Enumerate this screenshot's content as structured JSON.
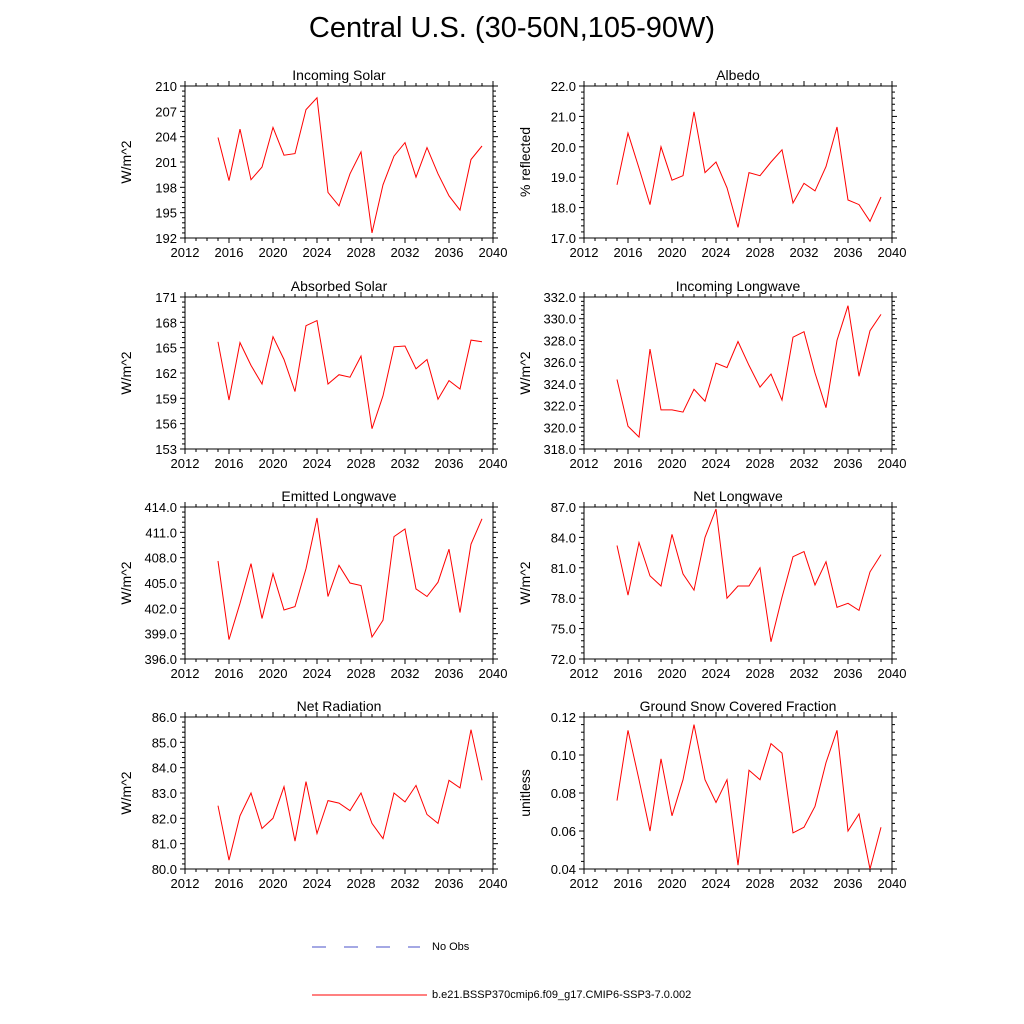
{
  "figure": {
    "title": "Central U.S. (30-50N,105-90W)",
    "line_color": "#ff0000",
    "obs_color": "#4a52c8"
  },
  "legend": {
    "obs_label": "No Obs",
    "model_label": "b.e21.BSSP370cmip6.f09_g17.CMIP6-SSP3-7.0.002"
  },
  "chart_data": [
    {
      "type": "line",
      "title": "Incoming Solar",
      "ylabel": "W/m^2",
      "xlabel": "",
      "xlim": [
        2012,
        2040
      ],
      "xticks": [
        2012,
        2016,
        2020,
        2024,
        2028,
        2032,
        2036,
        2040
      ],
      "ylim": [
        192,
        210
      ],
      "yticks": [
        192,
        195,
        198,
        201,
        204,
        207,
        210
      ],
      "ytick_labels": [
        "192",
        "195",
        "198",
        "201",
        "204",
        "207",
        "210"
      ],
      "series": [
        {
          "name": "b.e21.BSSP370cmip6.f09_g17.CMIP6-SSP3-7.0.002",
          "x": [
            2015,
            2016,
            2017,
            2018,
            2019,
            2020,
            2021,
            2022,
            2023,
            2024,
            2025,
            2026,
            2027,
            2028,
            2029,
            2030,
            2031,
            2032,
            2033,
            2034,
            2035,
            2036,
            2037,
            2038,
            2039
          ],
          "values": [
            203.9,
            198.8,
            204.9,
            198.9,
            200.4,
            205.1,
            201.8,
            202.0,
            207.2,
            208.6,
            197.4,
            195.8,
            199.6,
            202.2,
            192.6,
            198.3,
            201.7,
            203.3,
            199.2,
            202.7,
            199.6,
            197.0,
            195.3,
            201.3,
            202.9
          ]
        }
      ]
    },
    {
      "type": "line",
      "title": "Albedo",
      "ylabel": "% reflected",
      "xlabel": "",
      "xlim": [
        2012,
        2040
      ],
      "xticks": [
        2012,
        2016,
        2020,
        2024,
        2028,
        2032,
        2036,
        2040
      ],
      "ylim": [
        17.0,
        22.0
      ],
      "yticks": [
        17,
        18,
        19,
        20,
        21,
        22
      ],
      "ytick_labels": [
        "17.0",
        "18.0",
        "19.0",
        "20.0",
        "21.0",
        "22.0"
      ],
      "series": [
        {
          "name": "b.e21.BSSP370cmip6.f09_g17.CMIP6-SSP3-7.0.002",
          "x": [
            2015,
            2016,
            2017,
            2018,
            2019,
            2020,
            2021,
            2022,
            2023,
            2024,
            2025,
            2026,
            2027,
            2028,
            2029,
            2030,
            2031,
            2032,
            2033,
            2034,
            2035,
            2036,
            2037,
            2038,
            2039
          ],
          "values": [
            18.75,
            20.45,
            19.3,
            18.1,
            20.0,
            18.9,
            19.05,
            21.15,
            19.15,
            19.5,
            18.65,
            17.35,
            19.15,
            19.05,
            19.5,
            19.9,
            18.15,
            18.8,
            18.55,
            19.35,
            20.65,
            18.25,
            18.1,
            17.55,
            18.35
          ]
        }
      ]
    },
    {
      "type": "line",
      "title": "Absorbed Solar",
      "ylabel": "W/m^2",
      "xlabel": "",
      "xlim": [
        2012,
        2040
      ],
      "xticks": [
        2012,
        2016,
        2020,
        2024,
        2028,
        2032,
        2036,
        2040
      ],
      "ylim": [
        153,
        171
      ],
      "yticks": [
        153,
        156,
        159,
        162,
        165,
        168,
        171
      ],
      "ytick_labels": [
        "153",
        "156",
        "159",
        "162",
        "165",
        "168",
        "171"
      ],
      "series": [
        {
          "name": "b.e21.BSSP370cmip6.f09_g17.CMIP6-SSP3-7.0.002",
          "x": [
            2015,
            2016,
            2017,
            2018,
            2019,
            2020,
            2021,
            2022,
            2023,
            2024,
            2025,
            2026,
            2027,
            2028,
            2029,
            2030,
            2031,
            2032,
            2033,
            2034,
            2035,
            2036,
            2037,
            2038,
            2039
          ],
          "values": [
            165.7,
            158.8,
            165.6,
            162.9,
            160.7,
            166.3,
            163.6,
            159.8,
            167.6,
            168.2,
            160.7,
            161.8,
            161.5,
            164.0,
            155.4,
            159.3,
            165.1,
            165.2,
            162.5,
            163.6,
            158.9,
            161.1,
            160.1,
            165.9,
            165.7
          ]
        }
      ]
    },
    {
      "type": "line",
      "title": "Incoming Longwave",
      "ylabel": "W/m^2",
      "xlabel": "",
      "xlim": [
        2012,
        2040
      ],
      "xticks": [
        2012,
        2016,
        2020,
        2024,
        2028,
        2032,
        2036,
        2040
      ],
      "ylim": [
        318.0,
        332.0
      ],
      "yticks": [
        318,
        320,
        322,
        324,
        326,
        328,
        330,
        332
      ],
      "ytick_labels": [
        "318.0",
        "320.0",
        "322.0",
        "324.0",
        "326.0",
        "328.0",
        "330.0",
        "332.0"
      ],
      "series": [
        {
          "name": "b.e21.BSSP370cmip6.f09_g17.CMIP6-SSP3-7.0.002",
          "x": [
            2015,
            2016,
            2017,
            2018,
            2019,
            2020,
            2021,
            2022,
            2023,
            2024,
            2025,
            2026,
            2027,
            2028,
            2029,
            2030,
            2031,
            2032,
            2033,
            2034,
            2035,
            2036,
            2037,
            2038,
            2039
          ],
          "values": [
            324.4,
            320.1,
            319.1,
            327.2,
            321.6,
            321.6,
            321.4,
            323.5,
            322.4,
            325.9,
            325.5,
            327.9,
            325.7,
            323.7,
            324.9,
            322.5,
            328.3,
            328.8,
            325.0,
            321.8,
            328.0,
            331.2,
            324.7,
            328.9,
            330.4
          ]
        }
      ]
    },
    {
      "type": "line",
      "title": "Emitted Longwave",
      "ylabel": "W/m^2",
      "xlabel": "",
      "xlim": [
        2012,
        2040
      ],
      "xticks": [
        2012,
        2016,
        2020,
        2024,
        2028,
        2032,
        2036,
        2040
      ],
      "ylim": [
        396.0,
        414.0
      ],
      "yticks": [
        396,
        399,
        402,
        405,
        408,
        411,
        414
      ],
      "ytick_labels": [
        "396.0",
        "399.0",
        "402.0",
        "405.0",
        "408.0",
        "411.0",
        "414.0"
      ],
      "series": [
        {
          "name": "b.e21.BSSP370cmip6.f09_g17.CMIP6-SSP3-7.0.002",
          "x": [
            2015,
            2016,
            2017,
            2018,
            2019,
            2020,
            2021,
            2022,
            2023,
            2024,
            2025,
            2026,
            2027,
            2028,
            2029,
            2030,
            2031,
            2032,
            2033,
            2034,
            2035,
            2036,
            2037,
            2038,
            2039
          ],
          "values": [
            407.6,
            398.3,
            402.6,
            407.3,
            400.8,
            406.1,
            401.8,
            402.2,
            406.7,
            412.7,
            403.4,
            407.1,
            405.0,
            404.7,
            398.6,
            400.6,
            410.5,
            411.4,
            404.3,
            403.4,
            405.1,
            409.0,
            401.5,
            409.6,
            412.6
          ]
        }
      ]
    },
    {
      "type": "line",
      "title": "Net Longwave",
      "ylabel": "W/m^2",
      "xlabel": "",
      "xlim": [
        2012,
        2040
      ],
      "xticks": [
        2012,
        2016,
        2020,
        2024,
        2028,
        2032,
        2036,
        2040
      ],
      "ylim": [
        72.0,
        87.0
      ],
      "yticks": [
        72,
        75,
        78,
        81,
        84,
        87
      ],
      "ytick_labels": [
        "72.0",
        "75.0",
        "78.0",
        "81.0",
        "84.0",
        "87.0"
      ],
      "series": [
        {
          "name": "b.e21.BSSP370cmip6.f09_g17.CMIP6-SSP3-7.0.002",
          "x": [
            2015,
            2016,
            2017,
            2018,
            2019,
            2020,
            2021,
            2022,
            2023,
            2024,
            2025,
            2026,
            2027,
            2028,
            2029,
            2030,
            2031,
            2032,
            2033,
            2034,
            2035,
            2036,
            2037,
            2038,
            2039
          ],
          "values": [
            83.2,
            78.3,
            83.5,
            80.2,
            79.2,
            84.3,
            80.4,
            78.8,
            84.0,
            86.8,
            78.0,
            79.2,
            79.2,
            81.0,
            73.7,
            78.1,
            82.1,
            82.6,
            79.3,
            81.6,
            77.1,
            77.5,
            76.8,
            80.6,
            82.3
          ]
        }
      ]
    },
    {
      "type": "line",
      "title": "Net Radiation",
      "ylabel": "W/m^2",
      "xlabel": "",
      "xlim": [
        2012,
        2040
      ],
      "xticks": [
        2012,
        2016,
        2020,
        2024,
        2028,
        2032,
        2036,
        2040
      ],
      "ylim": [
        80.0,
        86.0
      ],
      "yticks": [
        80,
        81,
        82,
        83,
        84,
        85,
        86
      ],
      "ytick_labels": [
        "80.0",
        "81.0",
        "82.0",
        "83.0",
        "84.0",
        "85.0",
        "86.0"
      ],
      "series": [
        {
          "name": "b.e21.BSSP370cmip6.f09_g17.CMIP6-SSP3-7.0.002",
          "x": [
            2015,
            2016,
            2017,
            2018,
            2019,
            2020,
            2021,
            2022,
            2023,
            2024,
            2025,
            2026,
            2027,
            2028,
            2029,
            2030,
            2031,
            2032,
            2033,
            2034,
            2035,
            2036,
            2037,
            2038,
            2039
          ],
          "values": [
            82.5,
            80.35,
            82.1,
            83.0,
            81.6,
            82.0,
            83.25,
            81.1,
            83.45,
            81.4,
            82.7,
            82.6,
            82.3,
            83.0,
            81.8,
            81.2,
            83.0,
            82.65,
            83.3,
            82.15,
            81.8,
            83.5,
            83.2,
            85.5,
            83.5
          ]
        }
      ]
    },
    {
      "type": "line",
      "title": "Ground Snow Covered Fraction",
      "ylabel": "unitless",
      "xlabel": "",
      "xlim": [
        2012,
        2040
      ],
      "xticks": [
        2012,
        2016,
        2020,
        2024,
        2028,
        2032,
        2036,
        2040
      ],
      "ylim": [
        0.04,
        0.12
      ],
      "yticks": [
        0.04,
        0.06,
        0.08,
        0.1,
        0.12
      ],
      "ytick_labels": [
        "0.04",
        "0.06",
        "0.08",
        "0.10",
        "0.12"
      ],
      "series": [
        {
          "name": "b.e21.BSSP370cmip6.f09_g17.CMIP6-SSP3-7.0.002",
          "x": [
            2015,
            2016,
            2017,
            2018,
            2019,
            2020,
            2021,
            2022,
            2023,
            2024,
            2025,
            2026,
            2027,
            2028,
            2029,
            2030,
            2031,
            2032,
            2033,
            2034,
            2035,
            2036,
            2037,
            2038,
            2039
          ],
          "values": [
            0.076,
            0.113,
            0.087,
            0.06,
            0.098,
            0.068,
            0.087,
            0.116,
            0.087,
            0.075,
            0.087,
            0.042,
            0.092,
            0.087,
            0.106,
            0.101,
            0.059,
            0.062,
            0.073,
            0.096,
            0.113,
            0.06,
            0.069,
            0.04,
            0.062
          ]
        }
      ]
    }
  ]
}
